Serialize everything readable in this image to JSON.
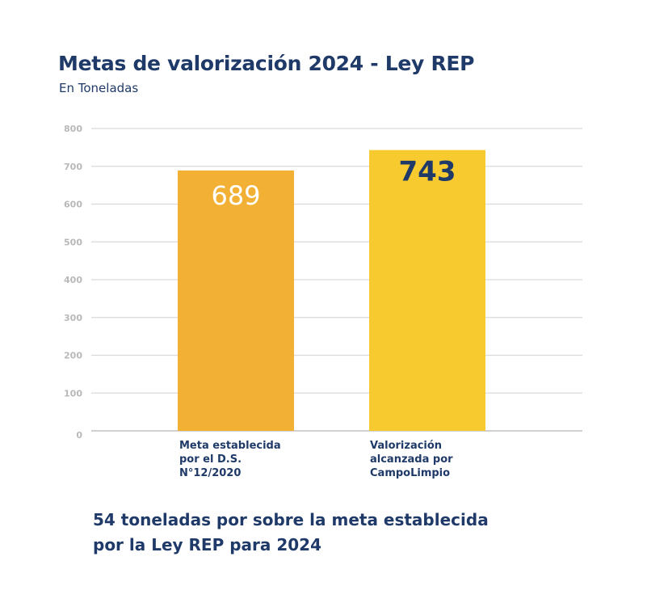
{
  "chart_data": {
    "type": "bar",
    "title": "Metas de valorización 2024 - Ley REP",
    "subtitle": "En Toneladas",
    "xlabel": "",
    "ylabel": "",
    "ylim": [
      0,
      800
    ],
    "yticks": [
      0,
      100,
      200,
      300,
      400,
      500,
      600,
      700,
      800
    ],
    "ytick_labels": [
      "0",
      "100",
      "200",
      "300",
      "400",
      "500",
      "600",
      "700",
      "800"
    ],
    "grid": true,
    "categories": [
      "Meta establecida\npor el D.S.\nN°12/2020",
      "Valorización\nalcanzada por\nCampoLimpio"
    ],
    "values": [
      689,
      743
    ],
    "data_labels": [
      "689",
      "743"
    ],
    "colors": [
      "#f2b035",
      "#f7ca2f"
    ],
    "label_colors": [
      "#ffffff",
      "#1f3a68"
    ],
    "annotation": "54 toneladas por sobre la meta establecida por la Ley REP para 2024"
  },
  "note": "54 toneladas por sobre la meta establecida\npor la Ley REP para 2024"
}
